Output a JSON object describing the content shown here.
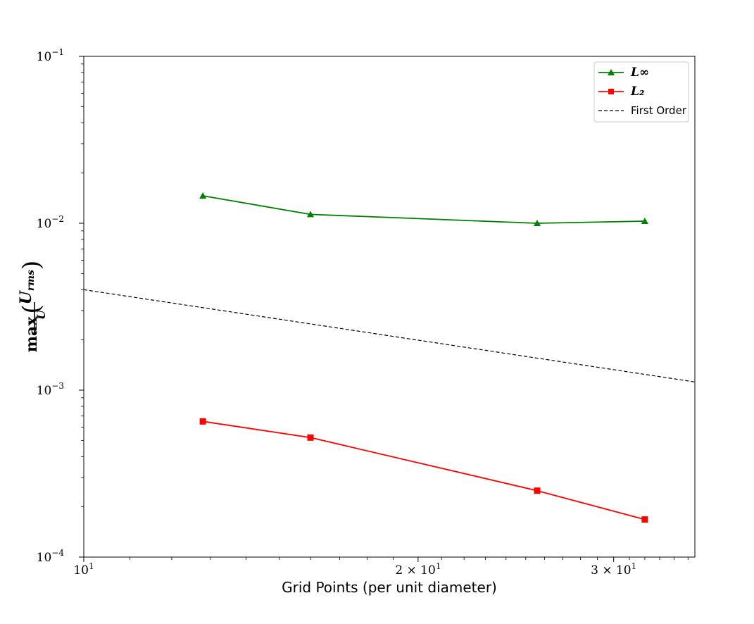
{
  "chart_data": {
    "type": "line",
    "xscale": "log",
    "yscale": "log",
    "xlabel": "Grid Points (per unit diameter)",
    "ylabel": "max(U_rms/U)",
    "xlim": [
      10,
      35.5
    ],
    "ylim": [
      0.0001,
      0.1
    ],
    "x_ticks": [
      {
        "value": 10,
        "base": "10",
        "exp": "1",
        "coef": ""
      },
      {
        "value": 20,
        "base": "10",
        "exp": "1",
        "coef": "2 × "
      },
      {
        "value": 30,
        "base": "10",
        "exp": "1",
        "coef": "3 × "
      }
    ],
    "y_ticks": [
      {
        "value": 0.1,
        "base": "10",
        "exp": "−1"
      },
      {
        "value": 0.01,
        "base": "10",
        "exp": "−2"
      },
      {
        "value": 0.001,
        "base": "10",
        "exp": "−3"
      },
      {
        "value": 0.0001,
        "base": "10",
        "exp": "−4"
      }
    ],
    "grid": false,
    "legend_position": "top-right",
    "series": [
      {
        "name": "L∞",
        "color": "#008000",
        "marker": "triangle",
        "dash": "",
        "x": [
          12.8,
          16.0,
          25.6,
          32.0
        ],
        "y": [
          0.0146,
          0.0113,
          0.01,
          0.0103
        ]
      },
      {
        "name": "L₂",
        "color": "#ff0000",
        "marker": "square",
        "dash": "",
        "x": [
          12.8,
          16.0,
          25.6,
          32.0
        ],
        "y": [
          0.00065,
          0.00052,
          0.00025,
          0.000168
        ]
      },
      {
        "name": "First Order",
        "color": "#000000",
        "marker": "none",
        "dash": "5,3",
        "x": [
          10,
          35.5
        ],
        "y": [
          0.004,
          0.00112
        ]
      }
    ]
  }
}
